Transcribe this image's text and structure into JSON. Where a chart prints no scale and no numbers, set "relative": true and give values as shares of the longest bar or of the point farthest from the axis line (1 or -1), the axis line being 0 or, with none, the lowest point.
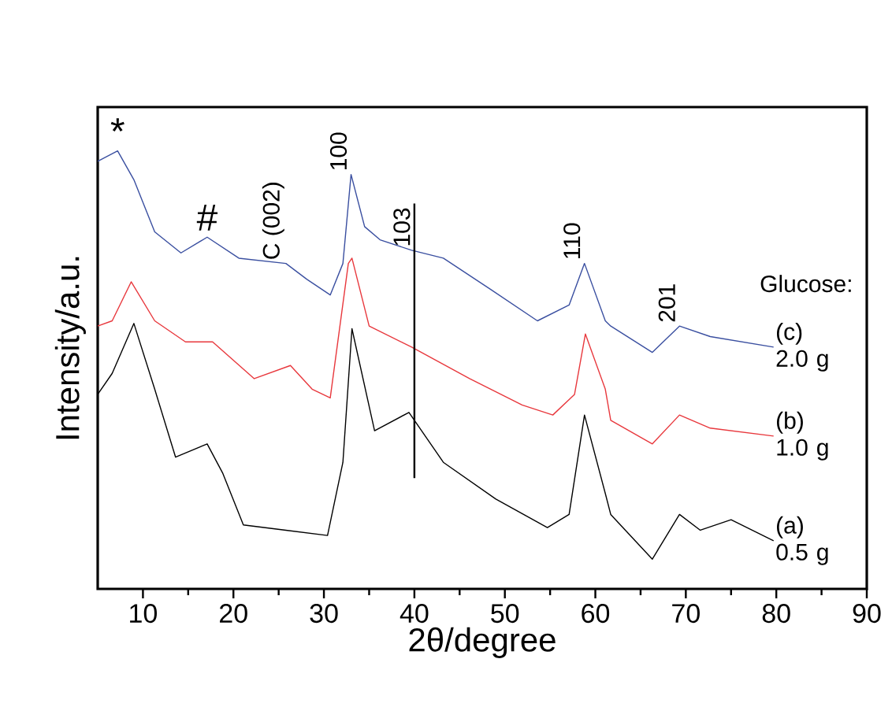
{
  "chart_data": {
    "type": "line",
    "xlabel": "2θ/degree",
    "ylabel": "Intensity/a.u.",
    "legend_title": "Glucose:",
    "xlim": [
      5,
      90
    ],
    "xticks": [
      10,
      20,
      30,
      40,
      50,
      60,
      70,
      80,
      90
    ],
    "tick_labels": "x",
    "relative": true,
    "grid": false,
    "marker": "none",
    "line_style": "solid",
    "series": [
      {
        "name": "(a) 0.5 g",
        "color": "#000000",
        "x": [
          5.0,
          6.6,
          9.0,
          11.3,
          13.6,
          17.1,
          18.8,
          21.1,
          25.8,
          30.4,
          32.1,
          33.1,
          35.6,
          39.4,
          43.2,
          49.0,
          54.7,
          57.1,
          58.8,
          61.1,
          61.7,
          66.3,
          69.3,
          71.6,
          75.0,
          79.7
        ],
        "values": [
          0.444,
          0.492,
          0.606,
          0.456,
          0.301,
          0.331,
          0.265,
          0.146,
          0.134,
          0.122,
          0.289,
          0.594,
          0.361,
          0.403,
          0.289,
          0.205,
          0.14,
          0.17,
          0.397,
          0.218,
          0.17,
          0.068,
          0.17,
          0.134,
          0.158,
          0.11
        ]
      },
      {
        "name": "(b) 1.0 g",
        "color": "#e8383d",
        "x": [
          5.0,
          6.6,
          8.7,
          11.3,
          14.7,
          17.7,
          22.3,
          26.3,
          28.7,
          30.7,
          32.7,
          33.1,
          35.0,
          39.7,
          46.1,
          51.9,
          55.3,
          57.7,
          58.9,
          61.1,
          61.7,
          66.3,
          69.3,
          72.7,
          79.7
        ],
        "values": [
          0.6,
          0.612,
          0.701,
          0.612,
          0.564,
          0.564,
          0.48,
          0.51,
          0.456,
          0.436,
          0.743,
          0.755,
          0.6,
          0.552,
          0.48,
          0.42,
          0.397,
          0.444,
          0.582,
          0.456,
          0.385,
          0.331,
          0.397,
          0.367,
          0.349
        ]
      },
      {
        "name": "(c) 2.0 g",
        "color": "#3a4fa0",
        "x": [
          5.0,
          7.2,
          9.0,
          11.3,
          14.2,
          17.1,
          20.6,
          25.8,
          28.1,
          30.7,
          32.1,
          33.0,
          34.5,
          36.2,
          39.7,
          43.2,
          48.4,
          53.6,
          57.1,
          58.8,
          61.1,
          61.7,
          66.3,
          69.3,
          72.7,
          79.7
        ],
        "values": [
          0.976,
          1.0,
          0.934,
          0.815,
          0.767,
          0.803,
          0.755,
          0.743,
          0.707,
          0.671,
          0.743,
          0.946,
          0.827,
          0.797,
          0.773,
          0.755,
          0.684,
          0.612,
          0.648,
          0.743,
          0.612,
          0.6,
          0.54,
          0.6,
          0.576,
          0.552
        ]
      }
    ],
    "ref_lines": [
      {
        "axis": "x",
        "value": 40,
        "color": "#000000"
      }
    ],
    "annotations": [
      {
        "text": "*",
        "x": 7.2,
        "y": 1.0
      },
      {
        "text": "#",
        "x": 17.1,
        "y": 0.803
      },
      {
        "text": "C (002)",
        "x": 25.8,
        "y": 0.743
      },
      {
        "text": "100",
        "x": 33.0,
        "y": 0.946
      },
      {
        "text": "103",
        "x": 40,
        "y": 0.773
      },
      {
        "text": "110",
        "x": 58.8,
        "y": 0.743
      },
      {
        "text": "201",
        "x": 69.3,
        "y": 0.6
      }
    ]
  }
}
